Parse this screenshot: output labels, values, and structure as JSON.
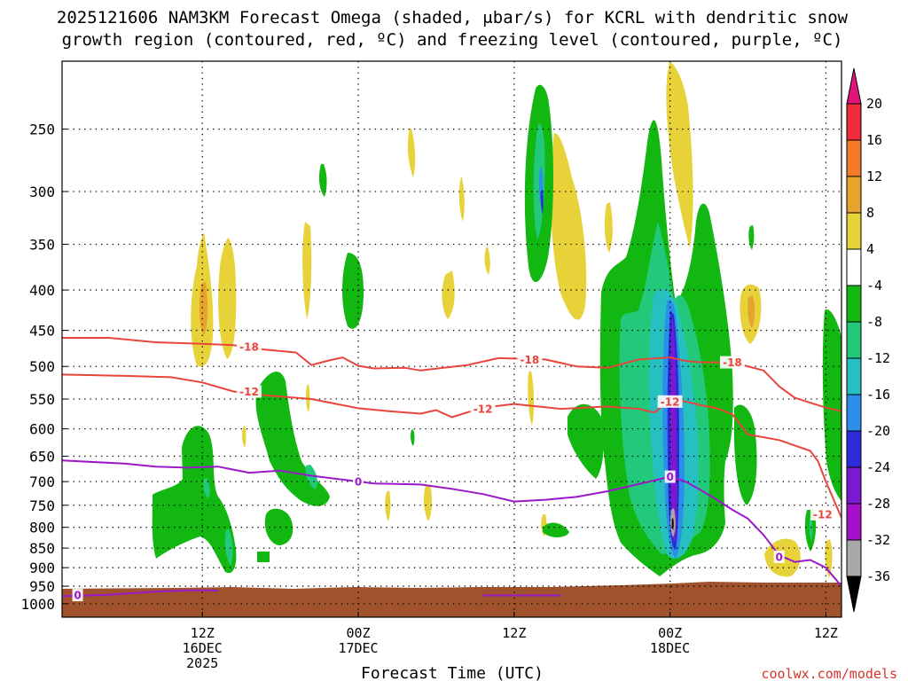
{
  "title": {
    "line1": "2025121606 NAM3KM Forecast Omega (shaded, μbar/s) for KCRL with dendritic snow",
    "line2": "growth region (contoured, red, ºC) and freezing level (contoured, purple, ºC)"
  },
  "credit": "coolwx.com/models",
  "colors": {
    "red_contour": "#e8453c",
    "purple_contour": "#9b19c9",
    "terrain": "#a0522d",
    "grid": "#000000"
  },
  "chart_data": {
    "type": "heatmap",
    "xlabel": "Forecast Time (UTC)",
    "ylabel": "",
    "y_scale": "log-pressure (inverted)",
    "ylim": [
      1040,
      205
    ],
    "xlim_hours": [
      -3,
      47
    ],
    "x_ticks": [
      {
        "hour": 6,
        "label": [
          "12Z",
          "16DEC",
          "2025"
        ]
      },
      {
        "hour": 16,
        "label": [
          "00Z",
          "17DEC"
        ]
      },
      {
        "hour": 26,
        "label": [
          "12Z"
        ]
      },
      {
        "hour": 36,
        "label": [
          "00Z",
          "18DEC"
        ]
      },
      {
        "hour": 46,
        "label": [
          "12Z"
        ]
      }
    ],
    "y_ticks": [
      250,
      300,
      350,
      400,
      450,
      500,
      550,
      600,
      650,
      700,
      750,
      800,
      850,
      900,
      950,
      1000
    ],
    "grid": true,
    "colorbar": {
      "levels": [
        20,
        16,
        12,
        8,
        4,
        -4,
        -8,
        -12,
        -16,
        -20,
        -24,
        -28,
        -32,
        -36
      ],
      "colors": [
        "#ee2c3b",
        "#f27a2a",
        "#e6a32d",
        "#e8d23a",
        "#ffffff",
        "#12b712",
        "#22c97a",
        "#26c0c0",
        "#2b8ee8",
        "#2b2bd8",
        "#7a1ad0",
        "#a310c8",
        "#a8a8a8"
      ],
      "top_triangle_color": "#e0157a",
      "bottom_triangle_color": "#000000"
    },
    "contours": [
      {
        "label": "-18",
        "color": "red",
        "points": [
          [
            -3,
            460
          ],
          [
            0,
            460
          ],
          [
            3,
            466
          ],
          [
            6,
            468
          ],
          [
            8,
            470
          ],
          [
            10,
            476
          ],
          [
            12,
            480
          ],
          [
            13,
            498
          ],
          [
            14,
            492
          ],
          [
            15,
            487
          ],
          [
            16,
            499
          ],
          [
            17,
            503
          ],
          [
            19,
            502
          ],
          [
            20,
            506
          ],
          [
            23,
            498
          ],
          [
            25,
            488
          ],
          [
            28,
            490
          ],
          [
            30,
            500
          ],
          [
            32,
            502
          ],
          [
            34,
            490
          ],
          [
            36,
            487
          ],
          [
            37,
            492
          ],
          [
            38,
            494
          ],
          [
            40,
            494
          ],
          [
            42,
            506
          ],
          [
            43,
            530
          ],
          [
            44,
            548
          ],
          [
            45,
            556
          ],
          [
            46,
            564
          ],
          [
            47,
            570
          ]
        ],
        "label_points": [
          [
            9,
            472
          ],
          [
            27,
            490
          ],
          [
            40,
            494
          ]
        ]
      },
      {
        "label": "-12",
        "color": "red",
        "points": [
          [
            -3,
            512
          ],
          [
            1,
            514
          ],
          [
            4,
            516
          ],
          [
            6,
            524
          ],
          [
            8,
            538
          ],
          [
            10,
            544
          ],
          [
            13,
            550
          ],
          [
            16,
            565
          ],
          [
            18,
            570
          ],
          [
            20,
            574
          ],
          [
            21,
            568
          ],
          [
            22,
            580
          ],
          [
            24,
            564
          ],
          [
            26,
            558
          ],
          [
            29,
            566
          ],
          [
            32,
            562
          ],
          [
            34,
            566
          ],
          [
            35,
            572
          ],
          [
            36,
            552
          ],
          [
            37,
            554
          ],
          [
            38,
            560
          ],
          [
            39,
            565
          ],
          [
            40,
            575
          ],
          [
            41,
            610
          ],
          [
            43,
            620
          ],
          [
            45,
            640
          ],
          [
            45.5,
            660
          ],
          [
            46,
            700
          ],
          [
            47,
            778
          ]
        ],
        "label_points": [
          [
            9,
            538
          ],
          [
            24,
            566
          ],
          [
            36,
            554
          ],
          [
            45.8,
            770
          ]
        ]
      },
      {
        "label": "0",
        "color": "purple",
        "points": [
          [
            -3,
            658
          ],
          [
            1,
            664
          ],
          [
            3,
            670
          ],
          [
            5,
            672
          ],
          [
            7,
            670
          ],
          [
            9,
            682
          ],
          [
            11,
            678
          ],
          [
            13,
            688
          ],
          [
            15,
            696
          ],
          [
            17,
            704
          ],
          [
            20,
            706
          ],
          [
            22,
            715
          ],
          [
            24,
            726
          ],
          [
            26,
            742
          ],
          [
            28,
            738
          ],
          [
            30,
            732
          ],
          [
            32,
            720
          ],
          [
            34,
            705
          ],
          [
            36,
            690
          ],
          [
            37,
            700
          ],
          [
            38,
            718
          ],
          [
            39,
            738
          ],
          [
            40,
            760
          ],
          [
            41,
            780
          ],
          [
            42,
            818
          ],
          [
            43,
            868
          ],
          [
            44,
            885
          ],
          [
            45,
            880
          ],
          [
            46,
            900
          ],
          [
            47,
            950
          ]
        ],
        "label_points": [
          [
            16,
            700
          ],
          [
            36,
            690
          ],
          [
            43,
            872
          ]
        ]
      },
      {
        "label": "0",
        "color": "purple",
        "points": [
          [
            -3,
            978
          ],
          [
            0,
            974
          ],
          [
            3,
            965
          ],
          [
            5,
            962
          ],
          [
            7,
            962
          ]
        ],
        "label_points": [
          [
            -2,
            975
          ]
        ]
      },
      {
        "label": "0",
        "color": "purple",
        "points": [
          [
            24,
            976
          ],
          [
            29,
            976
          ]
        ],
        "label_points": []
      }
    ]
  }
}
